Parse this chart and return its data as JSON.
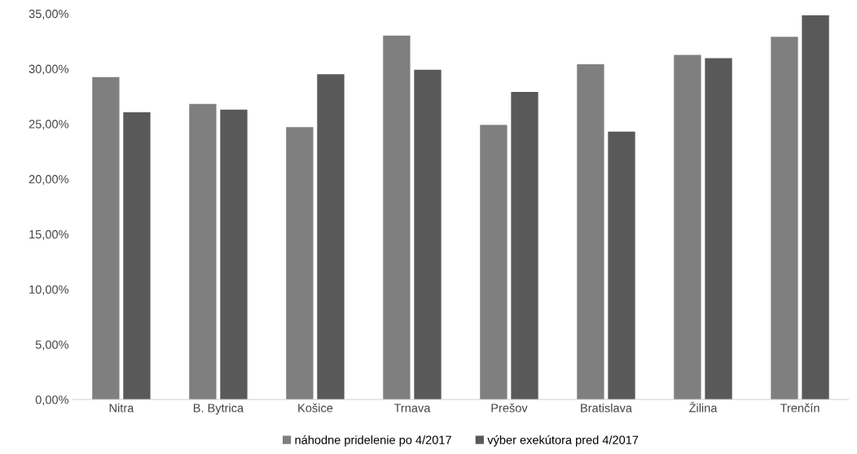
{
  "chart_data": {
    "type": "bar",
    "categories": [
      "Nitra",
      "B. Bytrica",
      "Košice",
      "Trnava",
      "Prešov",
      "Bratislava",
      "Žilina",
      "Trenčín"
    ],
    "series": [
      {
        "name": "náhodne pridelenie po 4/2017",
        "color": "#7f7f7f",
        "values": [
          29.25,
          26.8,
          24.7,
          33.0,
          24.9,
          30.4,
          31.25,
          32.9
        ]
      },
      {
        "name": "výber exekútora pred 4/2017",
        "color": "#595959",
        "values": [
          26.05,
          26.3,
          29.5,
          29.9,
          27.9,
          24.3,
          30.95,
          34.85
        ]
      }
    ],
    "ylim": [
      0,
      35
    ],
    "yticks": [
      {
        "value": 0,
        "label": "0,00%"
      },
      {
        "value": 5,
        "label": "5,00%"
      },
      {
        "value": 10,
        "label": "10,00%"
      },
      {
        "value": 15,
        "label": "15,00%"
      },
      {
        "value": 20,
        "label": "20,00%"
      },
      {
        "value": 25,
        "label": "25,00%"
      },
      {
        "value": 30,
        "label": "30,00%"
      },
      {
        "value": 35,
        "label": "35,00%"
      }
    ],
    "grid": false,
    "legend": "bottom"
  }
}
